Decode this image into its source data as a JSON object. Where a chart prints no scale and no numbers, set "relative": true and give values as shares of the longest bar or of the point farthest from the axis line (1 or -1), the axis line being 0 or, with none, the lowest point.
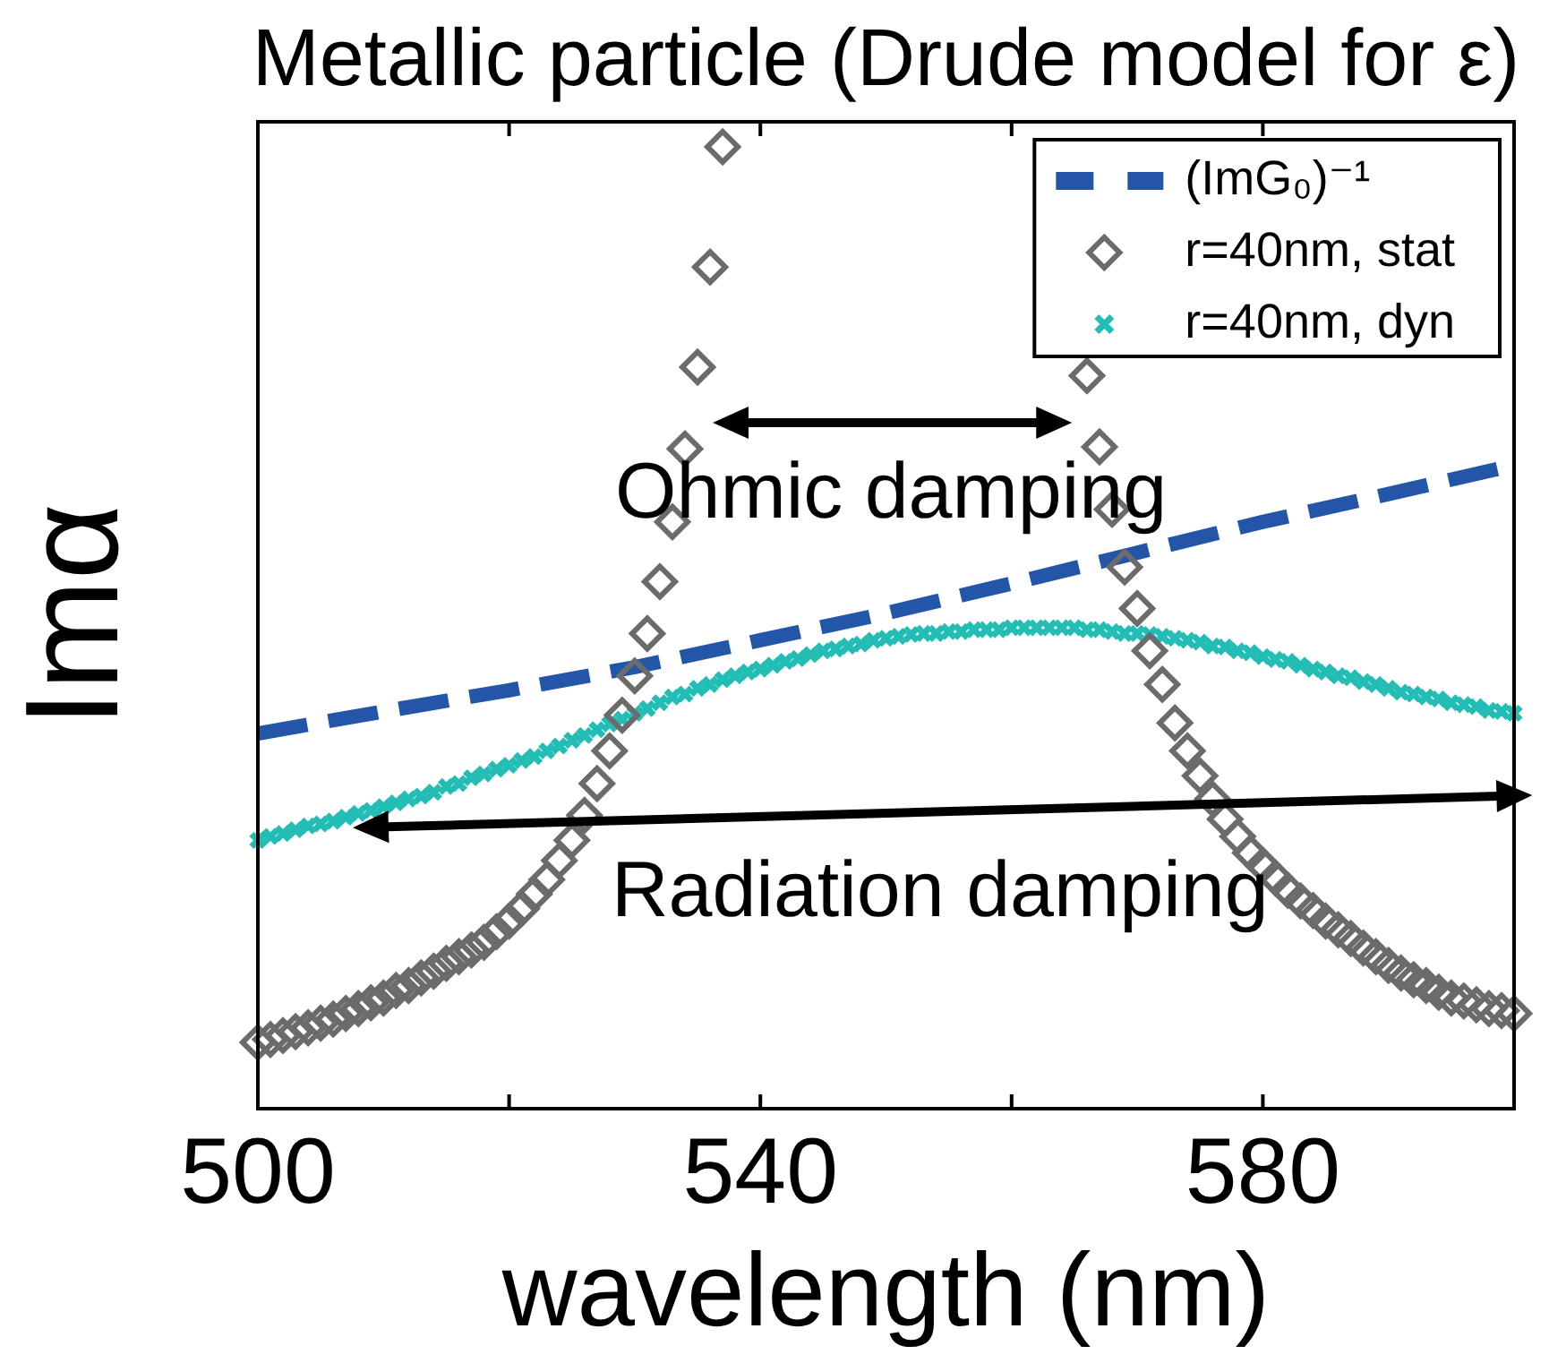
{
  "chart_data": {
    "type": "scatter",
    "title": "Metallic particle (Drude model for ε)",
    "xlabel": "wavelength (nm)",
    "ylabel": "Imα",
    "relative": true,
    "xlim": [
      500,
      600
    ],
    "xticks": [
      500,
      {
        "value": 520,
        "label": null
      },
      540,
      {
        "value": 560,
        "label": null
      },
      580
    ],
    "legend": "top right",
    "x": [
      500,
      501,
      502,
      503,
      504,
      505,
      506,
      507,
      508,
      509,
      510,
      511,
      512,
      513,
      514,
      515,
      516,
      517,
      518,
      519,
      520,
      521,
      522,
      523,
      524,
      525,
      526,
      527,
      528,
      529,
      530,
      531,
      532,
      533,
      534,
      535,
      536,
      537,
      538,
      539,
      540,
      541,
      542,
      543,
      544,
      545,
      546,
      547,
      548,
      549,
      550,
      551,
      552,
      553,
      554,
      555,
      556,
      557,
      558,
      559,
      560,
      561,
      562,
      563,
      564,
      565,
      566,
      567,
      568,
      569,
      570,
      571,
      572,
      573,
      574,
      575,
      576,
      577,
      578,
      579,
      580,
      581,
      582,
      583,
      584,
      585,
      586,
      587,
      588,
      589,
      590,
      591,
      592,
      593,
      594,
      595,
      596,
      597,
      598,
      599,
      600
    ],
    "series": [
      {
        "name": "(ImG₀)⁻¹",
        "type": "line",
        "color": "#2356a8",
        "line_style": "dashed",
        "marker": "none",
        "x": [
          500,
          510,
          520,
          530,
          540,
          550,
          560,
          570,
          580,
          590,
          600
        ],
        "values": [
          0.39,
          0.413,
          0.435,
          0.459,
          0.487,
          0.515,
          0.546,
          0.578,
          0.61,
          0.639,
          0.669
        ]
      },
      {
        "name": "r=40nm, stat",
        "type": "scatter",
        "color": "#6b6b6b",
        "marker": "diamond",
        "values": [
          0.069,
          0.072,
          0.076,
          0.08,
          0.084,
          0.089,
          0.093,
          0.099,
          0.104,
          0.11,
          0.115,
          0.123,
          0.128,
          0.136,
          0.143,
          0.151,
          0.158,
          0.165,
          0.173,
          0.184,
          0.195,
          0.208,
          0.223,
          0.238,
          0.258,
          0.279,
          0.305,
          0.338,
          0.372,
          0.409,
          0.45,
          0.494,
          0.548,
          0.61,
          0.686,
          0.771,
          0.875,
          1.0,
          null,
          null,
          null,
          null,
          null,
          null,
          null,
          null,
          null,
          null,
          null,
          null,
          null,
          null,
          null,
          null,
          null,
          null,
          null,
          null,
          null,
          null,
          null,
          null,
          null,
          null,
          null,
          null,
          0.762,
          0.688,
          0.623,
          0.563,
          0.52,
          0.476,
          0.441,
          0.401,
          0.372,
          0.346,
          0.322,
          0.301,
          0.283,
          0.266,
          0.253,
          0.24,
          0.227,
          0.216,
          0.206,
          0.195,
          0.186,
          0.177,
          0.167,
          0.158,
          0.149,
          0.141,
          0.134,
          0.128,
          0.121,
          0.115,
          0.112,
          0.108,
          0.104,
          0.102,
          0.099
        ]
      },
      {
        "name": "r=40nm, dyn",
        "type": "scatter",
        "color": "#22bdb5",
        "marker": "cross",
        "values": [
          0.279,
          0.283,
          0.286,
          0.29,
          0.294,
          0.296,
          0.299,
          0.303,
          0.307,
          0.31,
          0.314,
          0.318,
          0.322,
          0.325,
          0.329,
          0.335,
          0.338,
          0.344,
          0.348,
          0.353,
          0.357,
          0.362,
          0.366,
          0.372,
          0.377,
          0.383,
          0.388,
          0.394,
          0.4,
          0.405,
          0.411,
          0.416,
          0.422,
          0.428,
          0.431,
          0.437,
          0.441,
          0.446,
          0.45,
          0.454,
          0.457,
          0.461,
          0.465,
          0.468,
          0.472,
          0.476,
          0.478,
          0.481,
          0.483,
          0.487,
          0.489,
          0.491,
          0.493,
          0.494,
          0.494,
          0.496,
          0.496,
          0.498,
          0.498,
          0.498,
          0.5,
          0.5,
          0.5,
          0.5,
          0.5,
          0.5,
          0.498,
          0.498,
          0.496,
          0.494,
          0.494,
          0.493,
          0.491,
          0.489,
          0.487,
          0.485,
          0.481,
          0.48,
          0.476,
          0.474,
          0.47,
          0.467,
          0.465,
          0.461,
          0.457,
          0.454,
          0.45,
          0.448,
          0.444,
          0.441,
          0.437,
          0.433,
          0.431,
          0.428,
          0.426,
          0.422,
          0.42,
          0.418,
          0.414,
          0.413,
          0.411
        ]
      }
    ],
    "annotations": [
      "Ohmic damping",
      "Radiation damping"
    ]
  }
}
